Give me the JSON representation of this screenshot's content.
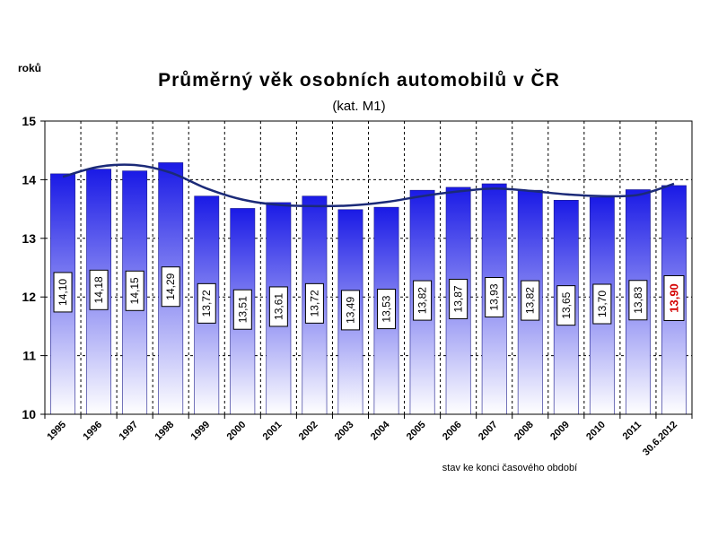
{
  "chart_data": {
    "type": "bar",
    "title": "Průměrný věk osobních automobilů v ČR",
    "subtitle": "(kat. M1)",
    "ylabel": "roků",
    "xlabel": "stav ke konci časového období",
    "ylim": [
      10,
      15
    ],
    "yticks": [
      "10",
      "11",
      "12",
      "13",
      "14",
      "15"
    ],
    "grid": true,
    "categories": [
      "1995",
      "1996",
      "1997",
      "1998",
      "1999",
      "2000",
      "2001",
      "2002",
      "2003",
      "2004",
      "2005",
      "2006",
      "2007",
      "2008",
      "2009",
      "2010",
      "2011",
      "30.6.2012"
    ],
    "values": [
      14.1,
      14.18,
      14.15,
      14.29,
      13.72,
      13.51,
      13.61,
      13.72,
      13.49,
      13.53,
      13.82,
      13.87,
      13.93,
      13.82,
      13.65,
      13.7,
      13.83,
      13.9
    ],
    "value_labels": [
      "14,10",
      "14,18",
      "14,15",
      "14,29",
      "13,72",
      "13,51",
      "13,61",
      "13,72",
      "13,49",
      "13,53",
      "13,82",
      "13,87",
      "13,93",
      "13,82",
      "13,65",
      "13,70",
      "13,83",
      "13,90"
    ],
    "highlight_index": 17,
    "highlight_color": "#d40000",
    "bar_color_top": "#1a1ae6",
    "bar_color_bottom": "#ffffff",
    "trend_color": "#1b2a78",
    "trend_values": [
      14.05,
      14.22,
      14.25,
      14.12,
      13.85,
      13.66,
      13.57,
      13.55,
      13.56,
      13.62,
      13.72,
      13.8,
      13.85,
      13.81,
      13.75,
      13.72,
      13.74,
      13.93
    ]
  }
}
